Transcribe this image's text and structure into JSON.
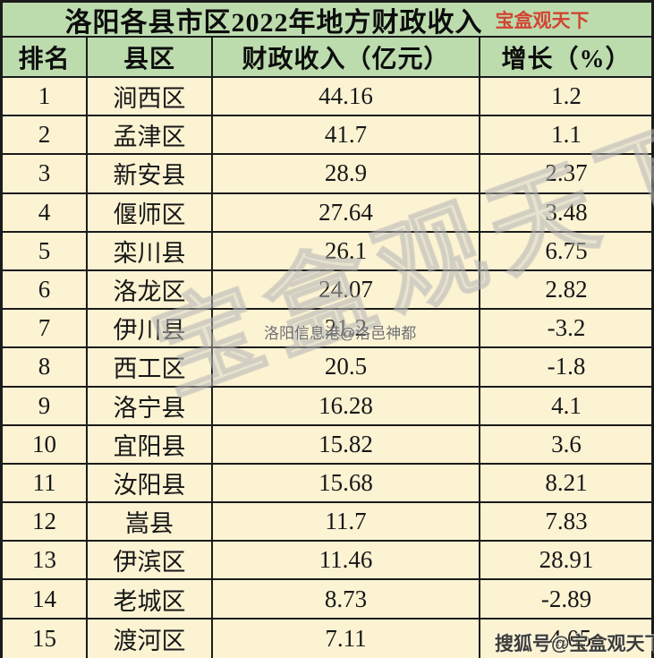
{
  "title": {
    "text": "洛阳各县市区2022年地方财政收入",
    "badge": "宝盒观天下"
  },
  "table": {
    "columns": {
      "rank": "排名",
      "name": "县区",
      "revenue": "财政收入（亿元）",
      "growth": "增长（%）"
    },
    "rows": [
      {
        "rank": "1",
        "name": "涧西区",
        "revenue": "44.16",
        "growth": "1.2"
      },
      {
        "rank": "2",
        "name": "孟津区",
        "revenue": "41.7",
        "growth": "1.1"
      },
      {
        "rank": "3",
        "name": "新安县",
        "revenue": "28.9",
        "growth": "2.37"
      },
      {
        "rank": "4",
        "name": "偃师区",
        "revenue": "27.64",
        "growth": "3.48"
      },
      {
        "rank": "5",
        "name": "栾川县",
        "revenue": "26.1",
        "growth": "6.75"
      },
      {
        "rank": "6",
        "name": "洛龙区",
        "revenue": "24.07",
        "growth": "2.82"
      },
      {
        "rank": "7",
        "name": "伊川县",
        "revenue": "21.2",
        "growth": "-3.2"
      },
      {
        "rank": "8",
        "name": "西工区",
        "revenue": "20.5",
        "growth": "-1.8"
      },
      {
        "rank": "9",
        "name": "洛宁县",
        "revenue": "16.28",
        "growth": "4.1"
      },
      {
        "rank": "10",
        "name": "宜阳县",
        "revenue": "15.82",
        "growth": "3.6"
      },
      {
        "rank": "11",
        "name": "汝阳县",
        "revenue": "15.68",
        "growth": "8.21"
      },
      {
        "rank": "12",
        "name": "嵩县",
        "revenue": "11.7",
        "growth": "7.83"
      },
      {
        "rank": "13",
        "name": "伊滨区",
        "revenue": "11.46",
        "growth": "28.91"
      },
      {
        "rank": "14",
        "name": "老城区",
        "revenue": "8.73",
        "growth": "-2.89"
      },
      {
        "rank": "15",
        "name": "渡河区",
        "revenue": "7.11",
        "growth": "-4.05"
      }
    ]
  },
  "watermarks": {
    "diagonal": "宝盒观天下",
    "center": "洛阳信息港@洛邑神都",
    "bottom": "搜狐号@宝盒观天下"
  },
  "colors": {
    "header_green": "#bcdcae",
    "row_cream": "#fcf3d3",
    "border": "#1b1b1b",
    "badge_red": "#d24433"
  }
}
